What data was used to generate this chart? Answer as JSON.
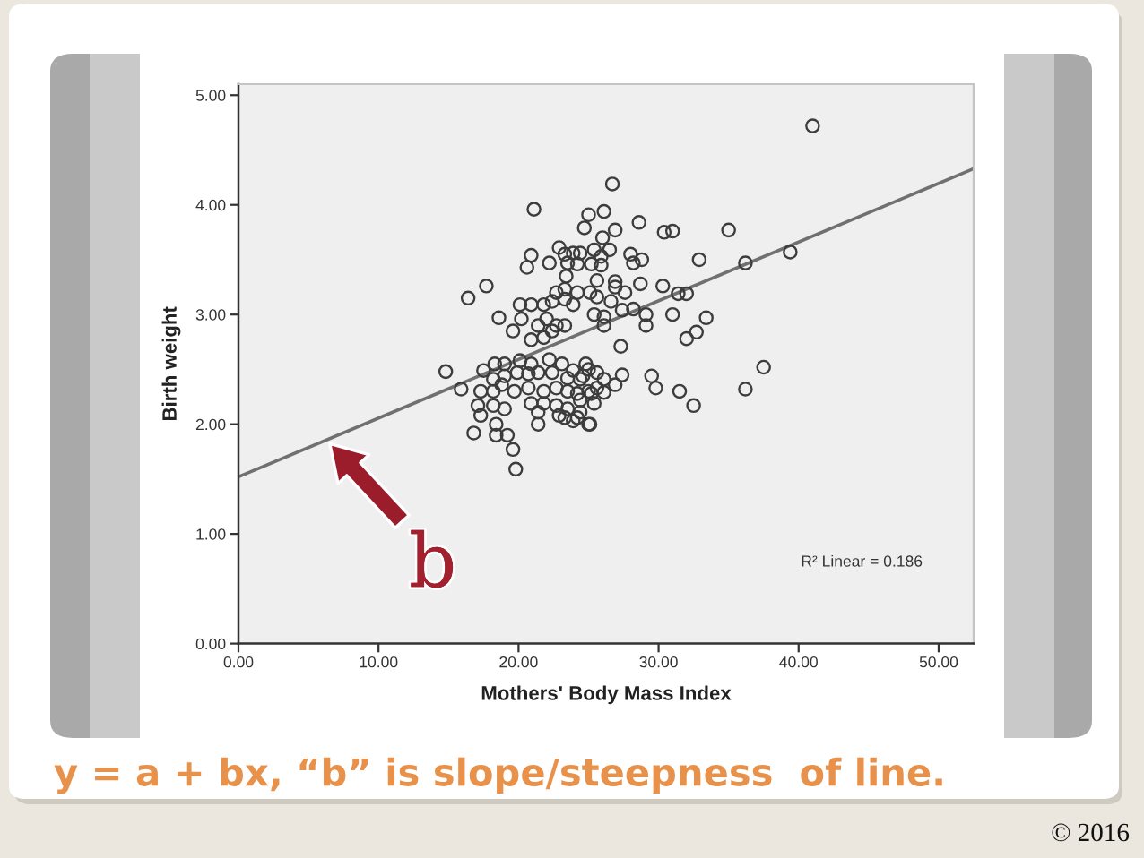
{
  "chart_data": {
    "type": "scatter",
    "xlabel": "Mothers' Body Mass Index",
    "ylabel": "Birth weight",
    "xlim": [
      0,
      52.5
    ],
    "ylim": [
      0,
      5.1
    ],
    "xticks": [
      {
        "value": 0,
        "label": "0.00"
      },
      {
        "value": 10,
        "label": "10.00"
      },
      {
        "value": 20,
        "label": "20.00"
      },
      {
        "value": 30,
        "label": "30.00"
      },
      {
        "value": 40,
        "label": "40.00"
      },
      {
        "value": 50,
        "label": "50.00"
      }
    ],
    "yticks": [
      {
        "value": 0,
        "label": "0.00"
      },
      {
        "value": 1,
        "label": "1.00"
      },
      {
        "value": 2,
        "label": "2.00"
      },
      {
        "value": 3,
        "label": "3.00"
      },
      {
        "value": 4,
        "label": "4.00"
      },
      {
        "value": 5,
        "label": "5.00"
      }
    ],
    "series": [
      {
        "color": "#3c3c3c",
        "marker": "circle",
        "x": [
          21.1,
          25.0,
          24.7,
          20.9,
          20.6,
          22.2,
          22.9,
          23.3,
          23.9,
          24.4,
          23.5,
          24.2,
          23.4,
          17.7,
          16.4,
          23.3,
          22.7,
          20.1,
          20.9,
          21.8,
          22.4,
          23.3,
          23.9,
          18.6,
          19.6,
          20.2,
          21.4,
          22.0,
          22.7,
          23.3,
          20.9,
          21.8,
          22.4,
          14.8,
          15.9,
          17.5,
          18.3,
          19.0,
          20.1,
          20.9,
          22.2,
          23.1,
          23.9,
          24.8,
          18.2,
          19.0,
          19.9,
          20.7,
          21.4,
          22.4,
          23.5,
          24.4,
          17.3,
          18.2,
          18.8,
          19.7,
          20.7,
          21.8,
          22.7,
          23.5,
          24.2,
          25.0,
          17.1,
          18.2,
          19.0,
          20.9,
          21.8,
          22.7,
          23.5,
          24.4,
          17.3,
          21.4,
          22.9,
          23.3,
          23.9,
          25.0,
          18.4,
          21.4,
          16.8,
          18.4,
          19.2,
          19.6,
          19.8,
          41.0,
          26.7,
          26.1,
          28.6,
          26.9,
          30.4,
          31.0,
          35.0,
          26.0,
          25.4,
          26.5,
          25.9,
          28.0,
          28.8,
          28.2,
          32.9,
          36.2,
          39.4,
          25.9,
          25.2,
          25.6,
          26.9,
          28.7,
          30.3,
          31.4,
          32.0,
          25.1,
          25.6,
          26.9,
          27.6,
          26.6,
          27.4,
          28.2,
          29.1,
          25.4,
          26.1,
          31.0,
          33.4,
          26.1,
          29.1,
          32.7,
          32.0,
          27.3,
          37.5,
          25.0,
          25.6,
          24.6,
          26.1,
          27.4,
          29.5,
          29.8,
          31.5,
          32.5,
          36.2,
          25.6,
          26.9,
          25.2,
          26.1,
          24.4,
          25.4,
          24.2,
          25.1,
          24.2
        ],
        "values": [
          3.96,
          3.91,
          3.79,
          3.54,
          3.43,
          3.47,
          3.61,
          3.55,
          3.56,
          3.56,
          3.47,
          3.46,
          3.35,
          3.26,
          3.15,
          3.23,
          3.2,
          3.09,
          3.09,
          3.09,
          3.12,
          3.14,
          3.09,
          2.97,
          2.85,
          2.96,
          2.9,
          2.96,
          2.9,
          2.9,
          2.77,
          2.79,
          2.85,
          2.48,
          2.32,
          2.49,
          2.55,
          2.55,
          2.58,
          2.55,
          2.59,
          2.55,
          2.49,
          2.55,
          2.41,
          2.44,
          2.47,
          2.46,
          2.47,
          2.47,
          2.42,
          2.41,
          2.3,
          2.3,
          2.36,
          2.3,
          2.33,
          2.3,
          2.33,
          2.3,
          2.28,
          2.3,
          2.17,
          2.17,
          2.14,
          2.19,
          2.19,
          2.17,
          2.14,
          2.11,
          2.08,
          2.11,
          2.08,
          2.06,
          2.03,
          2.0,
          2.0,
          2.0,
          1.92,
          1.9,
          1.9,
          1.77,
          1.59,
          4.72,
          4.19,
          3.94,
          3.84,
          3.77,
          3.75,
          3.76,
          3.77,
          3.7,
          3.59,
          3.59,
          3.53,
          3.55,
          3.5,
          3.47,
          3.5,
          3.47,
          3.57,
          3.45,
          3.46,
          3.31,
          3.3,
          3.28,
          3.26,
          3.19,
          3.19,
          3.2,
          3.16,
          3.25,
          3.2,
          3.12,
          3.04,
          3.05,
          3.0,
          3.0,
          2.98,
          3.0,
          2.97,
          2.9,
          2.9,
          2.84,
          2.78,
          2.71,
          2.52,
          2.5,
          2.47,
          2.44,
          2.41,
          2.45,
          2.44,
          2.33,
          2.3,
          2.17,
          2.32,
          2.33,
          2.36,
          2.28,
          2.29,
          2.22,
          2.19,
          2.06,
          2.0,
          3.2
        ]
      },
      {
        "type": "line",
        "color": "#707070",
        "line_style": "solid",
        "x": [
          0,
          52.5
        ],
        "values": [
          1.52,
          4.33
        ]
      }
    ],
    "annotations": [
      "R² Linear = 0.186",
      {
        "text": "b",
        "x": 6.4,
        "y": 1.84
      },
      "y = a + bx, “b” is slope/steepness  of line.",
      "© 2016"
    ]
  }
}
